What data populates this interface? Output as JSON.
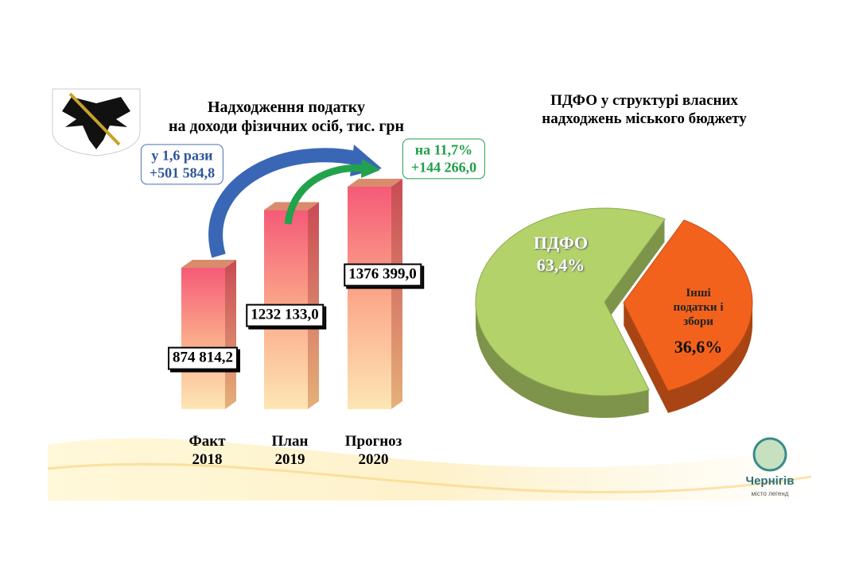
{
  "chart_data": [
    {
      "type": "bar",
      "title": "Надходження податку\nна доходи фізичних осіб, тис. грн",
      "categories": [
        "Факт\n2018",
        "План\n2019",
        "Прогноз\n2020"
      ],
      "values": [
        874814.2,
        1232133.0,
        1376399.0
      ],
      "value_labels": [
        "874 814,2",
        "1232 133,0",
        "1376 399,0"
      ],
      "annotations": [
        "у 1,6 рази\n+501 584,8",
        "на 11,7%\n+144 266,0"
      ]
    },
    {
      "type": "pie",
      "title": "ПДФО у структурі власних\nнадходжень міського бюджету",
      "categories": [
        "ПДФО",
        "Інші\nподатки і\nзбори"
      ],
      "values": [
        63.4,
        36.6
      ],
      "value_labels": [
        "63,4%",
        "36,6%"
      ],
      "colors": [
        "#b3d36a",
        "#f2621c"
      ]
    }
  ],
  "logo": {
    "name": "Чернігів",
    "tagline": "місто легенд"
  }
}
